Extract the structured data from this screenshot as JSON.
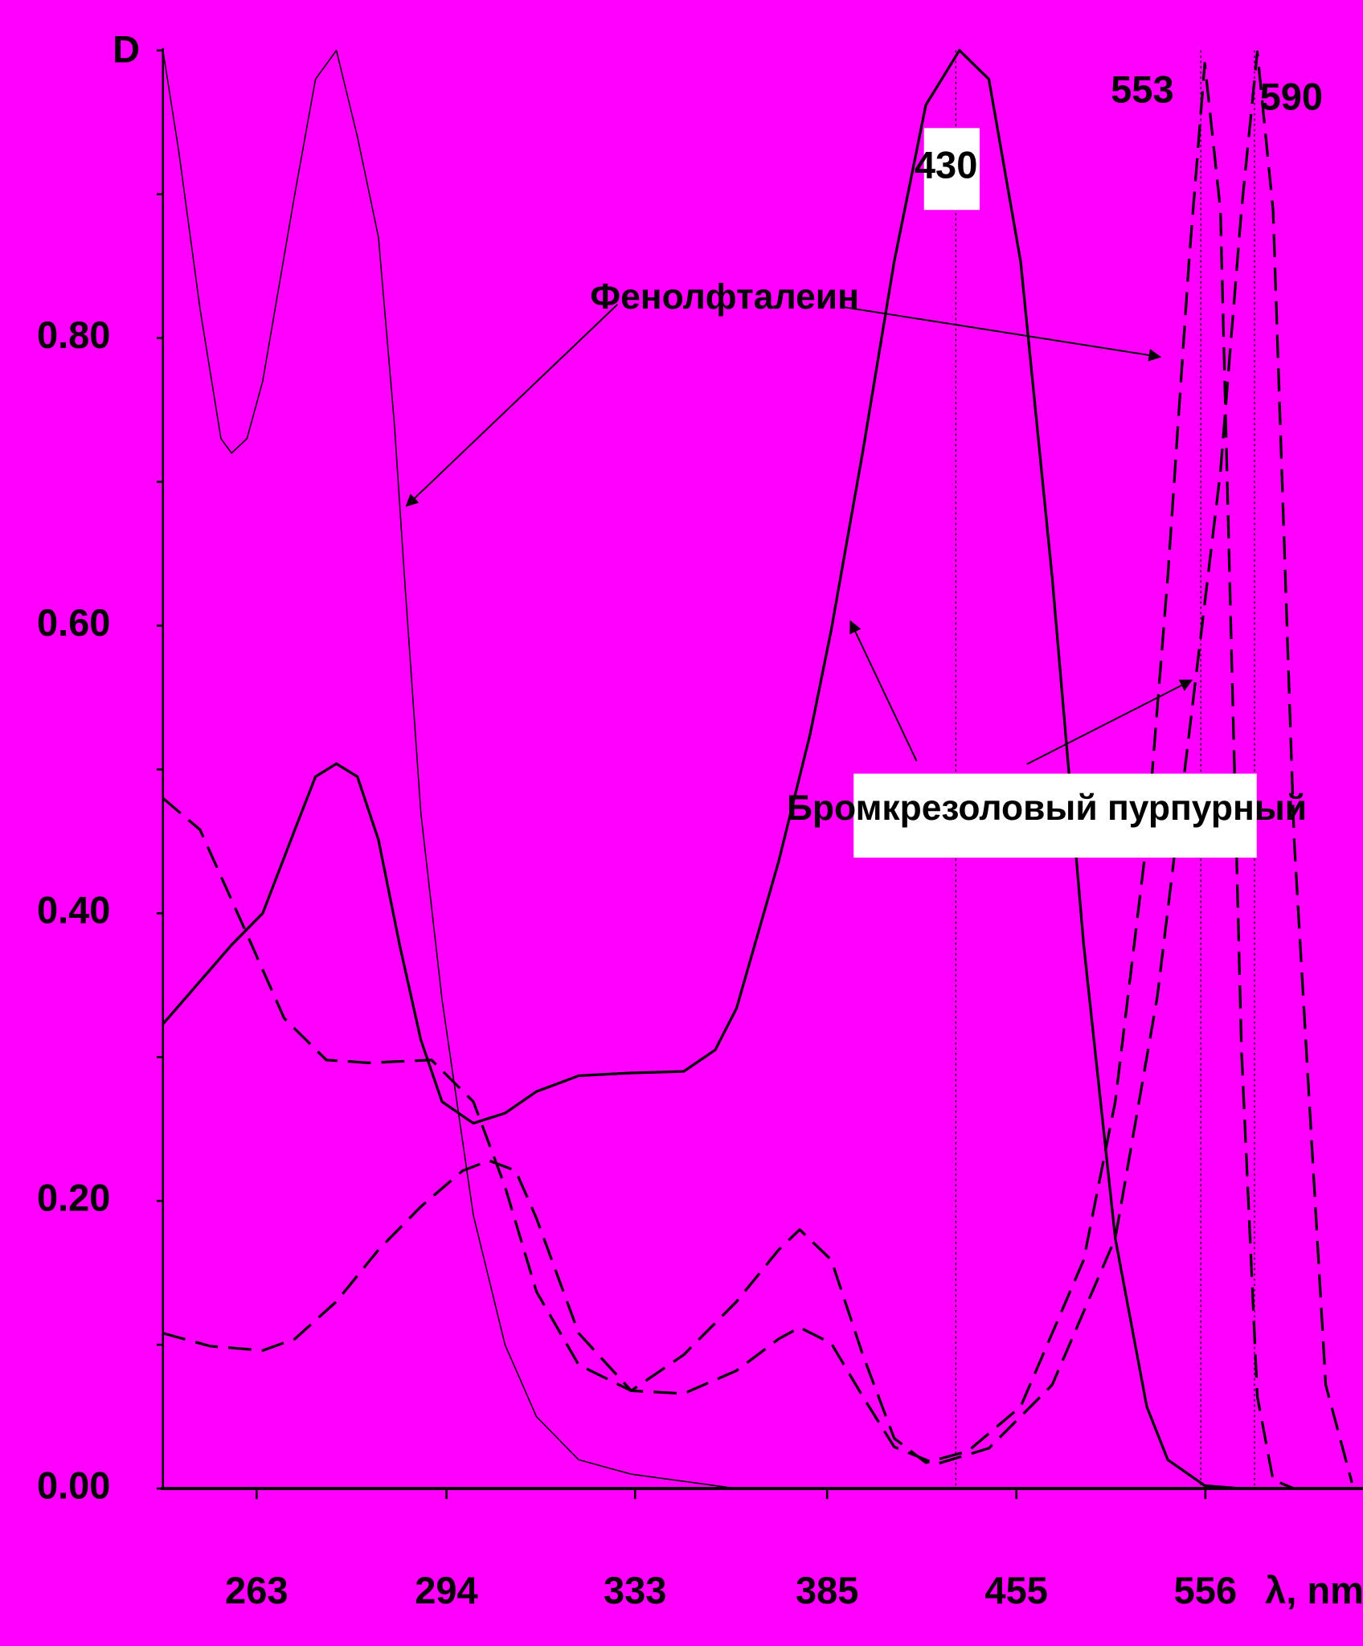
{
  "chart_data": {
    "type": "line",
    "x_axis_label": "λ, nm",
    "y_axis_label": "D",
    "x_scale": "reciprocal",
    "xlim": [
      250,
      682
    ],
    "xticks": [
      263,
      294,
      333,
      385,
      455,
      556
    ],
    "ylim": [
      0,
      1.0
    ],
    "yticks": [
      {
        "value": 0,
        "label": "0.00"
      },
      {
        "value": 0.2,
        "label": "0.20"
      },
      {
        "value": 0.4,
        "label": "0.40"
      },
      {
        "value": 0.6,
        "label": "0.60"
      },
      {
        "value": 0.8,
        "label": "0.80"
      }
    ],
    "yminorticks": [
      0.1,
      0.3,
      0.5,
      0.7,
      0.9,
      1.0
    ],
    "peaks": [
      430,
      553,
      590
    ],
    "annotations": [
      "Фенолфталеин",
      "Бромкрезоловый пурпурный"
    ],
    "series": [
      {
        "color": "#000000",
        "style": "solid",
        "linewidth": 1.2,
        "x": [
          250.0,
          252.1,
          255.0,
          257.9,
          259.4,
          261.6,
          263.9,
          268.7,
          271.9,
          275.2,
          278.6,
          282.1,
          284.8,
          286.6,
          289.4,
          293.2,
          299.0,
          305.1,
          311.4,
          320.3,
          332.1,
          358.6,
          389.6
        ],
        "values": [
          1.0,
          0.93,
          0.82,
          0.73,
          0.72,
          0.73,
          0.77,
          0.9,
          0.98,
          1.0,
          0.94,
          0.87,
          0.74,
          0.63,
          0.47,
          0.34,
          0.19,
          0.1,
          0.05,
          0.02,
          0.01,
          0.0,
          0
        ]
      },
      {
        "color": "#000000",
        "style": "solid",
        "linewidth": 2.5,
        "x": [
          250.0,
          259.4,
          263.9,
          268.7,
          271.9,
          275.2,
          278.6,
          282.1,
          285.7,
          289.4,
          293.2,
          299.0,
          305.1,
          311.4,
          320.3,
          332.1,
          344.8,
          352.9,
          358.6,
          370.4,
          379.7,
          386.3,
          396.5,
          407.2,
          418.6,
          431.4,
          443.3,
          456.9,
          471.2,
          486.5,
          502.8,
          520.2,
          532.5,
          555.6,
          580.6
        ],
        "values": [
          0.323,
          0.378,
          0.4,
          0.458,
          0.495,
          0.504,
          0.495,
          0.451,
          0.378,
          0.312,
          0.269,
          0.254,
          0.261,
          0.276,
          0.287,
          0.289,
          0.29,
          0.305,
          0.334,
          0.436,
          0.524,
          0.597,
          0.721,
          0.853,
          0.962,
          1.0,
          0.98,
          0.853,
          0.634,
          0.378,
          0.174,
          0.057,
          0.02,
          0.002,
          0
        ]
      },
      {
        "color": "#000000",
        "style": "dashed",
        "linewidth": 2.5,
        "x": [
          250.0,
          255.0,
          260.9,
          267.1,
          273.6,
          280.4,
          291.3,
          299.0,
          305.1,
          311.4,
          320.3,
          332.1,
          344.8,
          358.6,
          370.4,
          376.6,
          386.3,
          396.5,
          407.2,
          418.6,
          434.8,
          456.9,
          486.5,
          502.8,
          520.2,
          532.5,
          545.5,
          555.6,
          566.0,
          580.6,
          592.1,
          604.0,
          620.7
        ],
        "values": [
          0.48,
          0.458,
          0.393,
          0.327,
          0.298,
          0.296,
          0.298,
          0.269,
          0.21,
          0.137,
          0.086,
          0.068,
          0.093,
          0.13,
          0.166,
          0.18,
          0.159,
          0.093,
          0.035,
          0.018,
          0.026,
          0.057,
          0.159,
          0.269,
          0.451,
          0.634,
          0.853,
          0.991,
          0.889,
          0.305,
          0.064,
          0.006,
          0
        ]
      },
      {
        "color": "#000000",
        "style": "dashed",
        "linewidth": 2.5,
        "x": [
          250.0,
          256.4,
          263.9,
          268.7,
          275.2,
          282.1,
          289.4,
          297.0,
          302.0,
          307.2,
          311.4,
          320.3,
          332.1,
          344.8,
          358.6,
          370.4,
          376.6,
          386.3,
          396.5,
          407.2,
          422.5,
          443.3,
          471.2,
          502.8,
          526.3,
          545.5,
          566.0,
          580.6,
          592.1,
          604.0,
          620.7,
          647.5,
          671.6
        ],
        "values": [
          0.108,
          0.099,
          0.096,
          0.104,
          0.13,
          0.166,
          0.196,
          0.221,
          0.228,
          0.221,
          0.188,
          0.108,
          0.068,
          0.066,
          0.082,
          0.104,
          0.112,
          0.101,
          0.064,
          0.029,
          0.017,
          0.028,
          0.072,
          0.174,
          0.342,
          0.524,
          0.707,
          0.889,
          0.999,
          0.889,
          0.451,
          0.072,
          0.004
        ]
      }
    ]
  }
}
